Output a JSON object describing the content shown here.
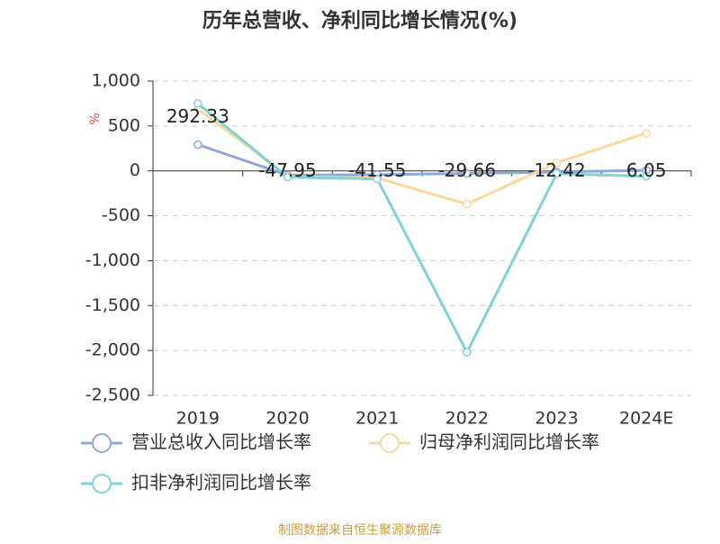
{
  "chart_data": {
    "type": "line",
    "title": "历年总营收、净利同比增长情况(%)",
    "y_label": "%",
    "source": "制图数据来自恒生聚源数据库",
    "categories": [
      "2019",
      "2020",
      "2021",
      "2022",
      "2023",
      "2024E"
    ],
    "series": [
      {
        "name": "营业总收入同比增长率",
        "color": "#8fa8d8",
        "values": [
          292.33,
          -47.95,
          -41.55,
          -29.66,
          -12.42,
          6.05
        ]
      },
      {
        "name": "归母净利润同比增长率",
        "color": "#fcd99a",
        "values": [
          690,
          -60,
          -80,
          -370,
          90,
          420
        ]
      },
      {
        "name": "扣非净利润同比增长率",
        "color": "#7dd3d6",
        "values": [
          750,
          -70,
          -90,
          -2020,
          -30,
          -60
        ]
      }
    ],
    "ylim": [
      -2500,
      1000
    ],
    "yticks": [
      {
        "value": -2500,
        "label": "-2,500"
      },
      {
        "value": -2000,
        "label": "-2,000"
      },
      {
        "value": -1500,
        "label": "-1,500"
      },
      {
        "value": -1000,
        "label": "-1,000"
      },
      -500,
      0,
      500,
      {
        "value": 1000,
        "label": "1,000"
      }
    ],
    "grid": true
  }
}
